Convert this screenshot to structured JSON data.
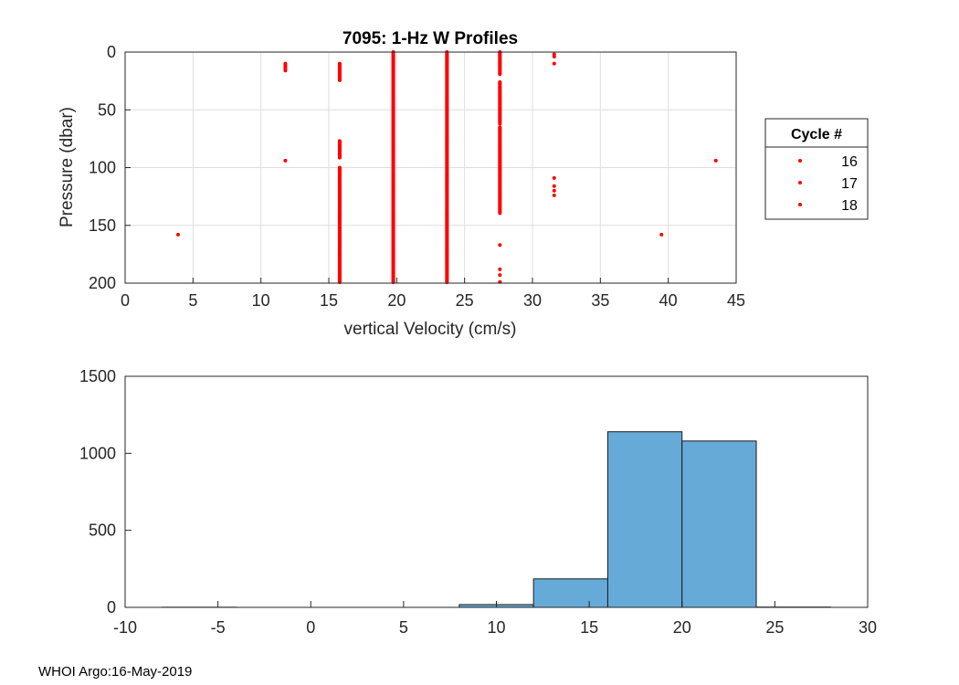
{
  "footer": "WHOI Argo:16-May-2019",
  "chart_data": [
    {
      "type": "scatter",
      "title": "7095: 1-Hz W Profiles",
      "xlabel": "vertical Velocity (cm/s)",
      "ylabel": "Pressure (dbar)",
      "xlim": [
        0,
        45
      ],
      "ylim": [
        0,
        200
      ],
      "y_reversed": true,
      "grid": true,
      "xticks": [
        "0",
        "5",
        "10",
        "15",
        "20",
        "25",
        "30",
        "35",
        "40",
        "45"
      ],
      "yticks": [
        "0",
        "50",
        "100",
        "150",
        "200"
      ],
      "marker_color": "#ff0000",
      "legend": {
        "title": "Cycle #",
        "placement": "outside-right",
        "entries": [
          "16",
          "17",
          "18"
        ]
      },
      "points": [
        [
          3.9,
          158
        ],
        [
          11.8,
          10
        ],
        [
          11.8,
          11
        ],
        [
          11.8,
          12
        ],
        [
          11.8,
          13
        ],
        [
          11.8,
          14
        ],
        [
          11.8,
          15
        ],
        [
          11.8,
          16
        ],
        [
          11.8,
          94
        ],
        [
          31.6,
          2
        ],
        [
          31.6,
          4
        ],
        [
          31.6,
          10
        ],
        [
          31.6,
          109
        ],
        [
          31.6,
          116
        ],
        [
          31.6,
          120
        ],
        [
          31.6,
          124
        ],
        [
          39.5,
          158
        ],
        [
          43.5,
          94
        ],
        [
          27.6,
          167
        ],
        [
          27.6,
          188
        ],
        [
          27.6,
          193
        ],
        [
          27.6,
          199
        ]
      ],
      "dense_columns": [
        {
          "x": 15.8,
          "ranges": [
            [
              10,
              25
            ],
            [
              77,
              92
            ],
            [
              100,
              200
            ]
          ]
        },
        {
          "x": 19.75,
          "ranges": [
            [
              0,
              200
            ]
          ]
        },
        {
          "x": 23.7,
          "ranges": [
            [
              0,
              200
            ]
          ]
        },
        {
          "x": 27.6,
          "ranges": [
            [
              0,
              20
            ],
            [
              26,
              62
            ],
            [
              65,
              140
            ]
          ]
        }
      ]
    },
    {
      "type": "bar",
      "title": "",
      "xlabel": "",
      "ylabel": "",
      "xlim": [
        -10,
        30
      ],
      "ylim": [
        0,
        1500
      ],
      "xticks": [
        "-10",
        "-5",
        "0",
        "5",
        "10",
        "15",
        "20",
        "25",
        "30"
      ],
      "yticks": [
        "0",
        "500",
        "1000",
        "1500"
      ],
      "bar_color": "#66aad8",
      "bin_width": 4,
      "bins": [
        {
          "center": -6,
          "value": 1
        },
        {
          "center": -2,
          "value": 0
        },
        {
          "center": 2,
          "value": 0
        },
        {
          "center": 6,
          "value": 0
        },
        {
          "center": 10,
          "value": 18
        },
        {
          "center": 14,
          "value": 185
        },
        {
          "center": 18,
          "value": 1140
        },
        {
          "center": 22,
          "value": 1080
        },
        {
          "center": 26,
          "value": 2
        }
      ]
    }
  ]
}
